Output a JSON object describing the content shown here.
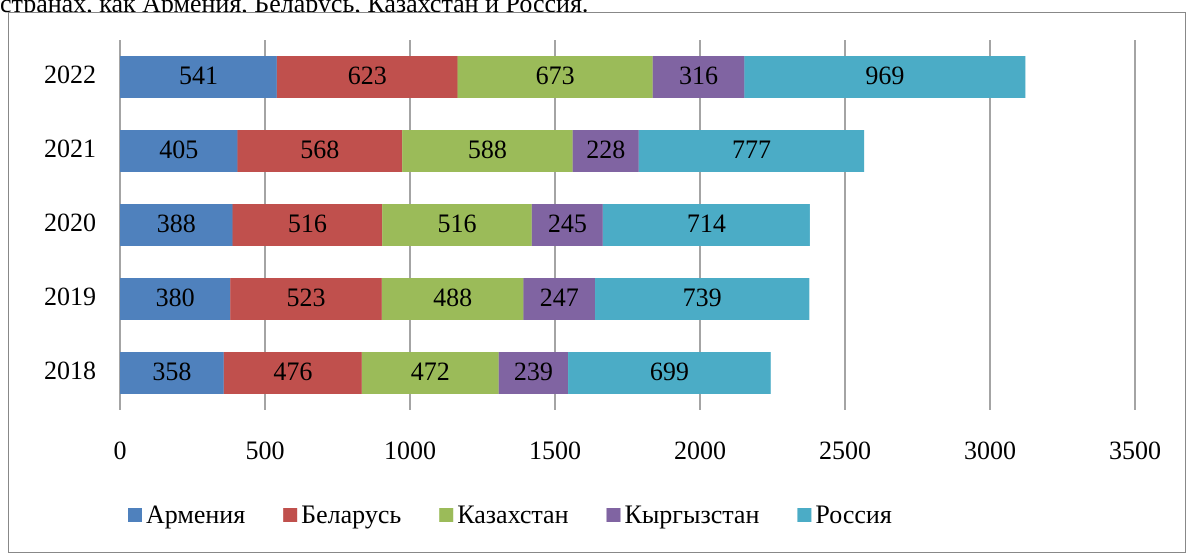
{
  "text_above": "странах, как Армения, Беларусь, Казахстан и Россия.",
  "chart_data": {
    "type": "stacked-barh",
    "categories": [
      "2018",
      "2019",
      "2020",
      "2021",
      "2022"
    ],
    "series": [
      {
        "name": "Армения",
        "color": "#4f81bd",
        "values": [
          358,
          380,
          388,
          405,
          541
        ]
      },
      {
        "name": "Беларусь",
        "color": "#c0504d",
        "values": [
          476,
          523,
          516,
          568,
          623
        ]
      },
      {
        "name": "Казахстан",
        "color": "#9bbb59",
        "values": [
          472,
          488,
          516,
          588,
          673
        ]
      },
      {
        "name": "Кыргызстан",
        "color": "#8064a2",
        "values": [
          239,
          247,
          245,
          228,
          316
        ]
      },
      {
        "name": "Россия",
        "color": "#4bacc6",
        "values": [
          699,
          739,
          714,
          777,
          969
        ]
      }
    ],
    "xlim": [
      0,
      3500
    ],
    "xticks": [
      0,
      500,
      1000,
      1500,
      2000,
      2500,
      3000,
      3500
    ],
    "grid": true,
    "legend": "bottom"
  }
}
